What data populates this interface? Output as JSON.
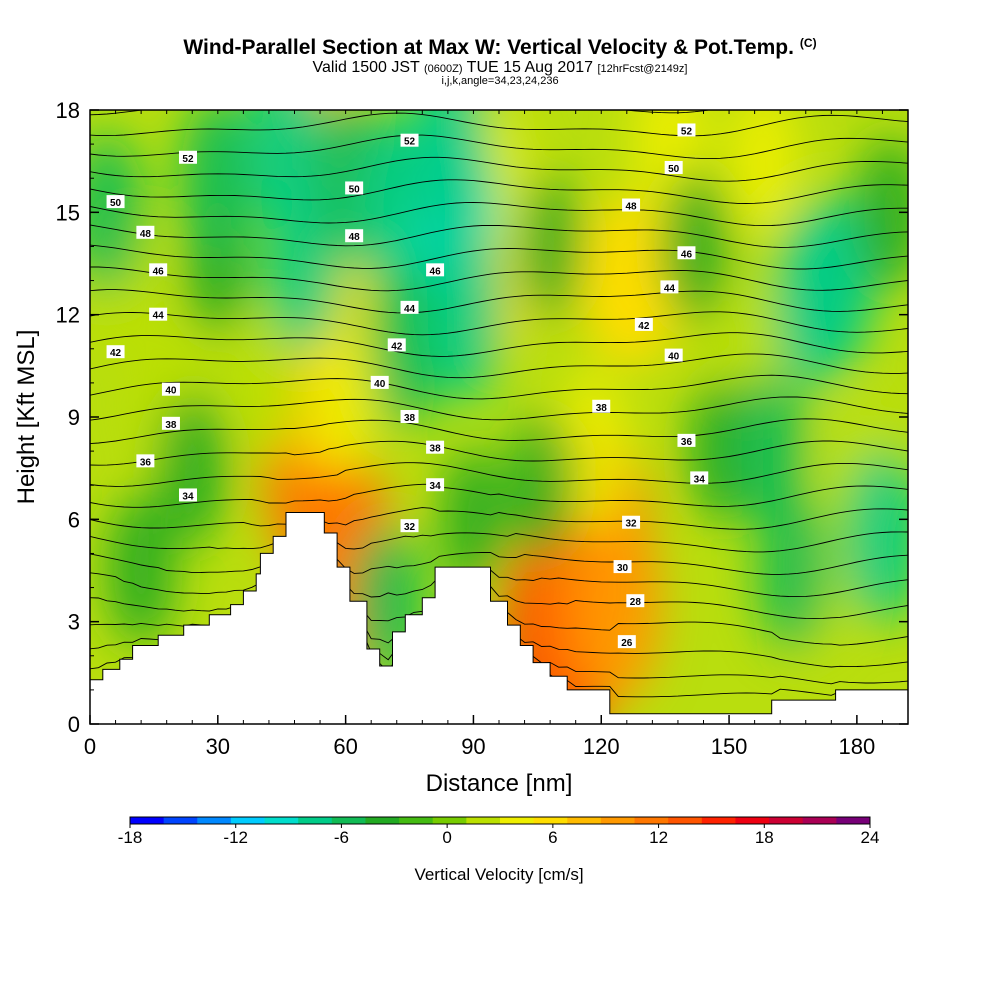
{
  "header": {
    "title": "Wind-Parallel Section at Max W: Vertical Velocity & Pot.Temp.",
    "title_units": "(C)",
    "valid_prefix": "Valid 1500 JST",
    "valid_utc": "(0600Z)",
    "valid_date": "TUE 15 Aug 2017",
    "forecast": "[12hrFcst@2149z]",
    "indices": "i,j,k,angle=34,23,24,236"
  },
  "chart_data": {
    "type": "heatmap",
    "xlabel": "Distance [nm]",
    "ylabel": "Height [Kft MSL]",
    "xlim": [
      0,
      192
    ],
    "ylim": [
      0,
      18
    ],
    "x_ticks": [
      "0",
      "30",
      "60",
      "90",
      "120",
      "150",
      "180"
    ],
    "y_ticks": [
      "0",
      "3",
      "6",
      "9",
      "12",
      "15",
      "18"
    ],
    "terrain": [
      [
        0,
        1.3
      ],
      [
        3,
        1.3
      ],
      [
        3,
        1.6
      ],
      [
        7,
        1.6
      ],
      [
        7,
        1.9
      ],
      [
        10,
        1.9
      ],
      [
        10,
        2.3
      ],
      [
        16,
        2.3
      ],
      [
        16,
        2.6
      ],
      [
        22,
        2.6
      ],
      [
        22,
        2.9
      ],
      [
        28,
        2.9
      ],
      [
        28,
        3.2
      ],
      [
        33,
        3.2
      ],
      [
        33,
        3.5
      ],
      [
        36,
        3.5
      ],
      [
        36,
        3.9
      ],
      [
        39,
        3.9
      ],
      [
        39,
        4.4
      ],
      [
        40,
        4.4
      ],
      [
        40,
        5
      ],
      [
        43,
        5
      ],
      [
        43,
        5.5
      ],
      [
        46,
        5.5
      ],
      [
        46,
        6.2
      ],
      [
        55,
        6.2
      ],
      [
        55,
        5.6
      ],
      [
        58,
        5.6
      ],
      [
        58,
        4.6
      ],
      [
        61,
        4.6
      ],
      [
        61,
        3.6
      ],
      [
        65,
        3.6
      ],
      [
        65,
        2.2
      ],
      [
        68,
        2.2
      ],
      [
        68,
        1.7
      ],
      [
        71,
        1.7
      ],
      [
        71,
        2.7
      ],
      [
        74,
        2.7
      ],
      [
        74,
        3.2
      ],
      [
        78,
        3.2
      ],
      [
        78,
        3.7
      ],
      [
        81,
        3.7
      ],
      [
        81,
        4.6
      ],
      [
        94,
        4.6
      ],
      [
        94,
        3.6
      ],
      [
        98,
        3.6
      ],
      [
        98,
        2.9
      ],
      [
        101,
        2.9
      ],
      [
        101,
        2.3
      ],
      [
        104,
        2.3
      ],
      [
        104,
        1.8
      ],
      [
        108,
        1.8
      ],
      [
        108,
        1.4
      ],
      [
        112,
        1.4
      ],
      [
        112,
        1.0
      ],
      [
        122,
        1.0
      ],
      [
        122,
        0.3
      ],
      [
        160,
        0.3
      ],
      [
        160,
        0.7
      ],
      [
        175,
        0.7
      ],
      [
        175,
        1.0
      ],
      [
        192,
        1.0
      ],
      [
        192,
        0
      ]
    ],
    "vertical_velocity_cm_s": [
      {
        "x": 52,
        "y": 7.5,
        "w": 13
      },
      {
        "x": 54,
        "y": 10,
        "w": 9
      },
      {
        "x": 55,
        "y": 16.5,
        "w": 9
      },
      {
        "x": 57,
        "y": 14,
        "w": 6
      },
      {
        "x": 60,
        "y": 5,
        "w": 12
      },
      {
        "x": 59,
        "y": 9.5,
        "w": 4
      },
      {
        "x": 96,
        "y": 13.5,
        "w": 7
      },
      {
        "x": 94,
        "y": 16,
        "w": 4
      },
      {
        "x": 110,
        "y": 2.6,
        "w": 17
      },
      {
        "x": 114,
        "y": 3.8,
        "w": 12
      },
      {
        "x": 120,
        "y": 5.5,
        "w": 13
      },
      {
        "x": 124,
        "y": 3.5,
        "w": 10
      },
      {
        "x": 118,
        "y": 8,
        "w": 5
      },
      {
        "x": 124,
        "y": 13,
        "w": 6
      },
      {
        "x": 130,
        "y": 13,
        "w": 6
      },
      {
        "x": 136,
        "y": 17,
        "w": 5
      },
      {
        "x": 42,
        "y": 10,
        "w": 3
      },
      {
        "x": 18,
        "y": 9.5,
        "w": 3
      },
      {
        "x": 8,
        "y": 13,
        "w": 3
      },
      {
        "x": 156,
        "y": 11,
        "w": 3
      },
      {
        "x": 158,
        "y": 16.5,
        "w": 4
      },
      {
        "x": 180,
        "y": 7.5,
        "w": 3
      },
      {
        "x": 170,
        "y": 4,
        "w": 2
      },
      {
        "x": 12,
        "y": 4.5,
        "w": -4
      },
      {
        "x": 24,
        "y": 7.5,
        "w": -4
      },
      {
        "x": 4,
        "y": 15,
        "w": -5
      },
      {
        "x": 30,
        "y": 13.5,
        "w": -3
      },
      {
        "x": 30,
        "y": 16,
        "w": -6
      },
      {
        "x": 50,
        "y": 13.5,
        "w": -7
      },
      {
        "x": 46,
        "y": 17,
        "w": -7
      },
      {
        "x": 62,
        "y": 16,
        "w": -6
      },
      {
        "x": 72,
        "y": 15,
        "w": -8
      },
      {
        "x": 74,
        "y": 11,
        "w": -5
      },
      {
        "x": 70,
        "y": 3.5,
        "w": -5
      },
      {
        "x": 86,
        "y": 15,
        "w": -9
      },
      {
        "x": 88,
        "y": 12,
        "w": -7
      },
      {
        "x": 84,
        "y": 17,
        "w": -8
      },
      {
        "x": 90,
        "y": 6,
        "w": -3
      },
      {
        "x": 108,
        "y": 14,
        "w": -3
      },
      {
        "x": 106,
        "y": 7,
        "w": -3
      },
      {
        "x": 148,
        "y": 8,
        "w": -3
      },
      {
        "x": 142,
        "y": 14,
        "w": -4
      },
      {
        "x": 160,
        "y": 8,
        "w": -5
      },
      {
        "x": 165,
        "y": 4.5,
        "w": -5
      },
      {
        "x": 170,
        "y": 12.5,
        "w": -8
      },
      {
        "x": 175,
        "y": 13,
        "w": -7
      },
      {
        "x": 186,
        "y": 5.5,
        "w": -7
      },
      {
        "x": 188,
        "y": 15,
        "w": -4
      }
    ],
    "contour_variable": "Pot.Temp. (C)",
    "contour_labels": [
      {
        "v": "52",
        "x": 23,
        "y": 16.6
      },
      {
        "v": "50",
        "x": 6,
        "y": 15.3
      },
      {
        "v": "48",
        "x": 13,
        "y": 14.4
      },
      {
        "v": "46",
        "x": 16,
        "y": 13.3
      },
      {
        "v": "44",
        "x": 16,
        "y": 12.0
      },
      {
        "v": "42",
        "x": 6,
        "y": 10.9
      },
      {
        "v": "40",
        "x": 19,
        "y": 9.8
      },
      {
        "v": "38",
        "x": 19,
        "y": 8.8
      },
      {
        "v": "36",
        "x": 13,
        "y": 7.7
      },
      {
        "v": "34",
        "x": 23,
        "y": 6.7
      },
      {
        "v": "52",
        "x": 75,
        "y": 17.1
      },
      {
        "v": "50",
        "x": 62,
        "y": 15.7
      },
      {
        "v": "48",
        "x": 62,
        "y": 14.3
      },
      {
        "v": "46",
        "x": 81,
        "y": 13.3
      },
      {
        "v": "44",
        "x": 75,
        "y": 12.2
      },
      {
        "v": "42",
        "x": 72,
        "y": 11.1
      },
      {
        "v": "40",
        "x": 68,
        "y": 10.0
      },
      {
        "v": "38",
        "x": 75,
        "y": 9.0
      },
      {
        "v": "38",
        "x": 81,
        "y": 8.1
      },
      {
        "v": "34",
        "x": 81,
        "y": 7.0
      },
      {
        "v": "32",
        "x": 75,
        "y": 5.8
      },
      {
        "v": "38",
        "x": 120,
        "y": 9.3
      },
      {
        "v": "36",
        "x": 140,
        "y": 8.3
      },
      {
        "v": "34",
        "x": 143,
        "y": 7.2
      },
      {
        "v": "32",
        "x": 127,
        "y": 5.9
      },
      {
        "v": "30",
        "x": 125,
        "y": 4.6
      },
      {
        "v": "28",
        "x": 128,
        "y": 3.6
      },
      {
        "v": "26",
        "x": 126,
        "y": 2.4
      },
      {
        "v": "40",
        "x": 137,
        "y": 10.8
      },
      {
        "v": "42",
        "x": 130,
        "y": 11.7
      },
      {
        "v": "44",
        "x": 136,
        "y": 12.8
      },
      {
        "v": "46",
        "x": 140,
        "y": 13.8
      },
      {
        "v": "48",
        "x": 127,
        "y": 15.2
      },
      {
        "v": "50",
        "x": 137,
        "y": 16.3
      },
      {
        "v": "52",
        "x": 140,
        "y": 17.4
      }
    ],
    "colorbar": {
      "title": "Vertical Velocity [cm/s]",
      "labels": [
        "-18",
        "-12",
        "-6",
        "0",
        "6",
        "12",
        "18",
        "24"
      ],
      "min": -18,
      "max": 24,
      "step": 2,
      "colors": [
        "#0000ff",
        "#0044ff",
        "#0088ff",
        "#00ccff",
        "#00ddcc",
        "#00cc88",
        "#11bb55",
        "#22aa22",
        "#44bb11",
        "#77cc00",
        "#bbe000",
        "#eeee00",
        "#ffdd00",
        "#ffbb00",
        "#ff9900",
        "#ff7700",
        "#ff5500",
        "#ff2200",
        "#ee0011",
        "#cc0033",
        "#aa0055",
        "#770077"
      ]
    }
  }
}
